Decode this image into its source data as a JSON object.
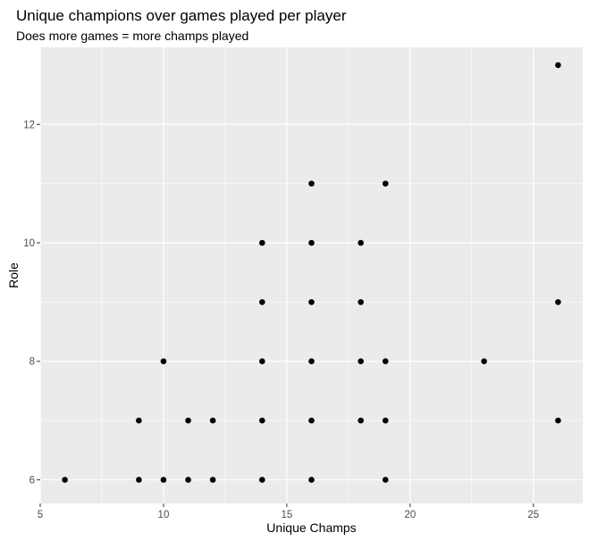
{
  "chart_data": {
    "type": "scatter",
    "title": "Unique champions over games played per player",
    "subtitle": "Does more games = more champs played",
    "xlabel": "Unique Champs",
    "ylabel": "Role",
    "xlim": [
      5,
      27
    ],
    "ylim": [
      5.6,
      13.3
    ],
    "x_ticks": [
      5,
      10,
      15,
      20,
      25
    ],
    "y_ticks": [
      6,
      8,
      10,
      12
    ],
    "grid": true,
    "colors": {
      "panel": "#ebebeb",
      "grid": "#ffffff",
      "point": "#000000"
    },
    "points": [
      {
        "x": 6,
        "y": 6
      },
      {
        "x": 9,
        "y": 6
      },
      {
        "x": 9,
        "y": 7
      },
      {
        "x": 10,
        "y": 6
      },
      {
        "x": 10,
        "y": 8
      },
      {
        "x": 11,
        "y": 6
      },
      {
        "x": 11,
        "y": 7
      },
      {
        "x": 12,
        "y": 6
      },
      {
        "x": 12,
        "y": 7
      },
      {
        "x": 14,
        "y": 6
      },
      {
        "x": 14,
        "y": 7
      },
      {
        "x": 14,
        "y": 8
      },
      {
        "x": 14,
        "y": 9
      },
      {
        "x": 14,
        "y": 10
      },
      {
        "x": 16,
        "y": 6
      },
      {
        "x": 16,
        "y": 7
      },
      {
        "x": 16,
        "y": 8
      },
      {
        "x": 16,
        "y": 9
      },
      {
        "x": 16,
        "y": 10
      },
      {
        "x": 16,
        "y": 11
      },
      {
        "x": 18,
        "y": 7
      },
      {
        "x": 18,
        "y": 8
      },
      {
        "x": 18,
        "y": 9
      },
      {
        "x": 18,
        "y": 10
      },
      {
        "x": 19,
        "y": 6
      },
      {
        "x": 19,
        "y": 7
      },
      {
        "x": 19,
        "y": 8
      },
      {
        "x": 19,
        "y": 11
      },
      {
        "x": 23,
        "y": 8
      },
      {
        "x": 26,
        "y": 7
      },
      {
        "x": 26,
        "y": 9
      },
      {
        "x": 26,
        "y": 13
      }
    ]
  }
}
